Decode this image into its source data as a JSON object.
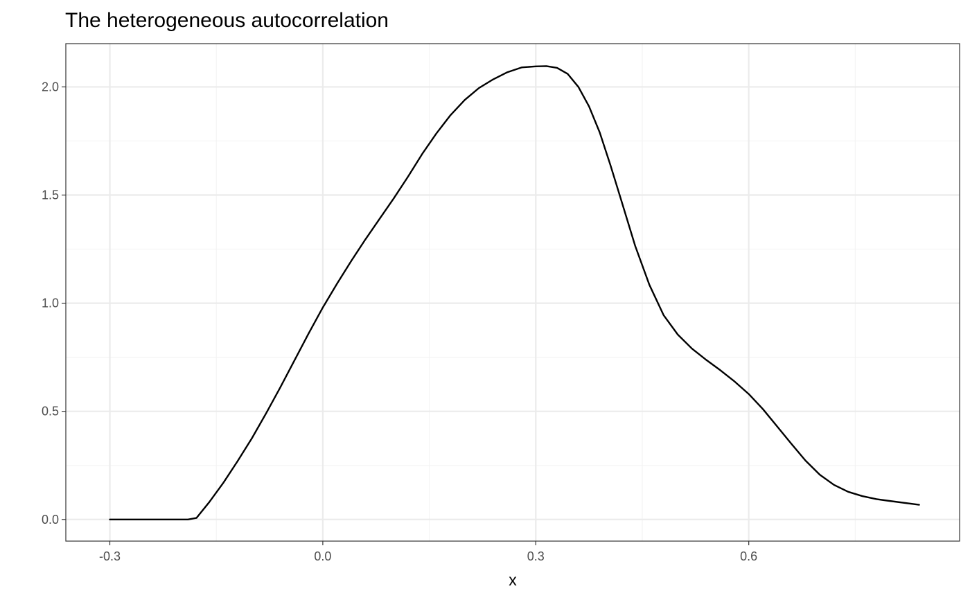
{
  "chart_data": {
    "type": "line",
    "title": "The heterogeneous autocorrelation",
    "xlabel": "x",
    "ylabel": "",
    "xlim": [
      -0.362,
      0.897
    ],
    "ylim": [
      -0.1,
      2.2
    ],
    "x_ticks": [
      -0.3,
      0.0,
      0.3,
      0.6
    ],
    "x_tick_labels": [
      "-0.3",
      "0.0",
      "0.3",
      "0.6"
    ],
    "y_ticks": [
      0.0,
      0.5,
      1.0,
      1.5,
      2.0
    ],
    "y_tick_labels": [
      "0.0",
      "0.5",
      "1.0",
      "1.5",
      "2.0"
    ],
    "grid": true,
    "legend": "none",
    "line_color": "#000000",
    "series": [
      {
        "x": [
          -0.3,
          -0.25,
          -0.19,
          -0.178,
          -0.16,
          -0.14,
          -0.12,
          -0.1,
          -0.08,
          -0.06,
          -0.04,
          -0.02,
          0.0,
          0.02,
          0.04,
          0.06,
          0.08,
          0.1,
          0.12,
          0.14,
          0.16,
          0.18,
          0.2,
          0.22,
          0.24,
          0.26,
          0.28,
          0.3,
          0.315,
          0.33,
          0.345,
          0.36,
          0.375,
          0.39,
          0.405,
          0.42,
          0.44,
          0.46,
          0.48,
          0.5,
          0.52,
          0.54,
          0.56,
          0.58,
          0.6,
          0.62,
          0.64,
          0.66,
          0.68,
          0.7,
          0.72,
          0.74,
          0.76,
          0.78,
          0.8,
          0.84
        ],
        "y": [
          0.0,
          0.0,
          0.0,
          0.007,
          0.08,
          0.17,
          0.27,
          0.375,
          0.49,
          0.61,
          0.735,
          0.86,
          0.98,
          1.09,
          1.195,
          1.295,
          1.39,
          1.485,
          1.585,
          1.69,
          1.785,
          1.87,
          1.94,
          1.995,
          2.035,
          2.068,
          2.09,
          2.095,
          2.096,
          2.088,
          2.06,
          2.0,
          1.91,
          1.79,
          1.64,
          1.48,
          1.265,
          1.085,
          0.945,
          0.855,
          0.79,
          0.738,
          0.69,
          0.638,
          0.58,
          0.51,
          0.43,
          0.35,
          0.272,
          0.207,
          0.16,
          0.128,
          0.108,
          0.094,
          0.085,
          0.068
        ]
      }
    ]
  }
}
